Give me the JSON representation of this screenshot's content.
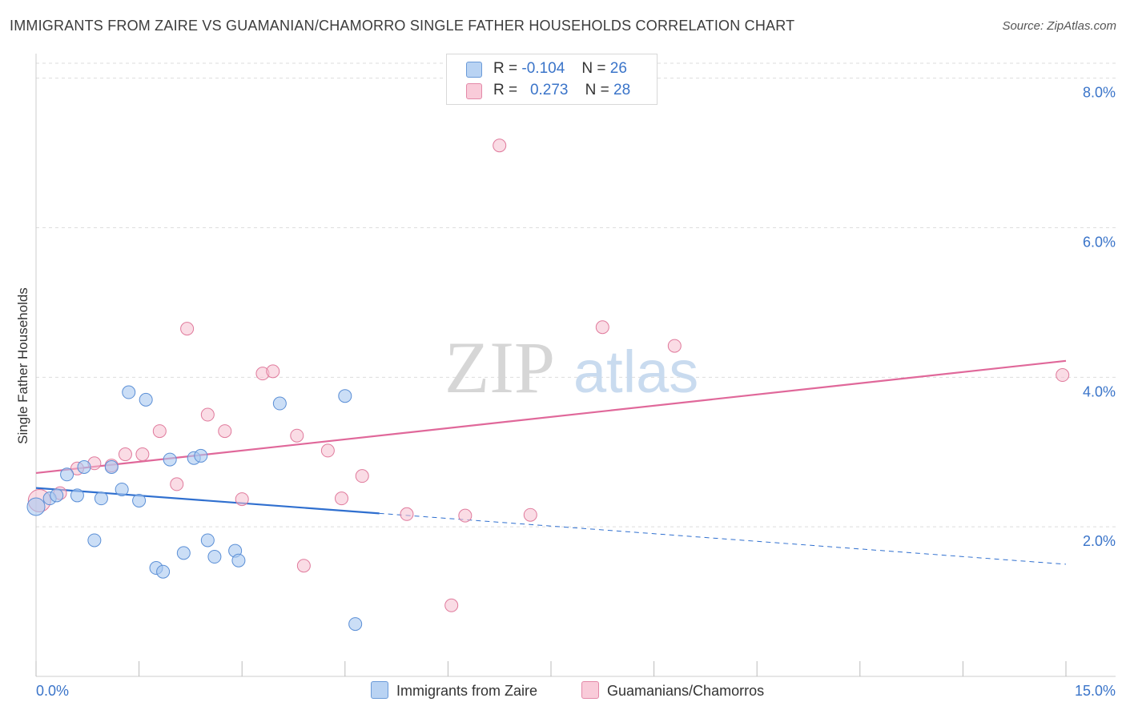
{
  "header": {
    "title": "IMMIGRANTS FROM ZAIRE VS GUAMANIAN/CHAMORRO SINGLE FATHER HOUSEHOLDS CORRELATION CHART",
    "source": "Source: ZipAtlas.com"
  },
  "watermark": {
    "zip": "ZIP",
    "atlas": "atlas"
  },
  "colors": {
    "blue_fill": "#a8c8f0",
    "blue_stroke": "#5b8fd6",
    "blue_line": "#2f6fcf",
    "pink_fill": "#f6bfd0",
    "pink_stroke": "#e07a9c",
    "pink_line": "#e0689a",
    "axis_text": "#3a74c9",
    "grid": "#dddddd"
  },
  "legend_top": {
    "rows": [
      {
        "r_label": "R =",
        "r_value": "-0.104",
        "n_label": "N =",
        "n_value": "26"
      },
      {
        "r_label": "R =",
        "r_value": "0.273",
        "n_label": "N =",
        "n_value": "28"
      }
    ]
  },
  "legend_bottom": {
    "series1": "Immigrants from Zaire",
    "series2": "Guamanians/Chamorros"
  },
  "chart_data": {
    "type": "scatter",
    "title": "IMMIGRANTS FROM ZAIRE VS GUAMANIAN/CHAMORRO SINGLE FATHER HOUSEHOLDS CORRELATION CHART",
    "xlabel": "",
    "ylabel": "Single Father Households",
    "xlim": [
      0,
      15
    ],
    "ylim": [
      0,
      8.2
    ],
    "x_tick_labels": {
      "left": "0.0%",
      "right": "15.0%"
    },
    "y_ticks": [
      2,
      4,
      6,
      8
    ],
    "y_tick_labels": [
      "2.0%",
      "4.0%",
      "6.0%",
      "8.0%"
    ],
    "grid": true,
    "series": [
      {
        "name": "Immigrants from Zaire",
        "color": "blue",
        "points": [
          [
            0.0,
            2.27
          ],
          [
            0.2,
            2.38
          ],
          [
            0.3,
            2.42
          ],
          [
            0.45,
            2.7
          ],
          [
            0.6,
            2.42
          ],
          [
            0.7,
            2.8
          ],
          [
            0.85,
            1.82
          ],
          [
            0.95,
            2.38
          ],
          [
            1.1,
            2.8
          ],
          [
            1.25,
            2.5
          ],
          [
            1.35,
            3.8
          ],
          [
            1.5,
            2.35
          ],
          [
            1.6,
            3.7
          ],
          [
            1.75,
            1.45
          ],
          [
            1.85,
            1.4
          ],
          [
            1.95,
            2.9
          ],
          [
            2.15,
            1.65
          ],
          [
            2.3,
            2.92
          ],
          [
            2.4,
            2.95
          ],
          [
            2.5,
            1.82
          ],
          [
            2.6,
            1.6
          ],
          [
            2.9,
            1.68
          ],
          [
            2.95,
            1.55
          ],
          [
            3.55,
            3.65
          ],
          [
            4.5,
            3.75
          ],
          [
            4.65,
            0.7
          ]
        ],
        "trend": {
          "solid_x": [
            0,
            5.0
          ],
          "dashed_x": [
            5.0,
            15.0
          ],
          "y_at_0": 2.52,
          "y_at_15": 1.5
        }
      },
      {
        "name": "Guamanians/Chamorros",
        "color": "pink",
        "points": [
          [
            0.05,
            2.35
          ],
          [
            0.35,
            2.45
          ],
          [
            0.6,
            2.78
          ],
          [
            0.85,
            2.85
          ],
          [
            1.1,
            2.82
          ],
          [
            1.3,
            2.97
          ],
          [
            1.55,
            2.97
          ],
          [
            1.8,
            3.28
          ],
          [
            2.05,
            2.57
          ],
          [
            2.2,
            4.65
          ],
          [
            2.5,
            3.5
          ],
          [
            2.75,
            3.28
          ],
          [
            3.0,
            2.37
          ],
          [
            3.3,
            4.05
          ],
          [
            3.45,
            4.08
          ],
          [
            3.8,
            3.22
          ],
          [
            3.9,
            1.48
          ],
          [
            4.25,
            3.02
          ],
          [
            4.45,
            2.38
          ],
          [
            4.75,
            2.68
          ],
          [
            5.4,
            2.17
          ],
          [
            6.05,
            0.95
          ],
          [
            6.25,
            2.15
          ],
          [
            6.75,
            7.1
          ],
          [
            7.2,
            2.16
          ],
          [
            8.25,
            4.67
          ],
          [
            9.3,
            4.42
          ],
          [
            14.95,
            4.03
          ]
        ],
        "trend": {
          "x": [
            0,
            15.0
          ],
          "y_at_0": 2.72,
          "y_at_15": 4.22
        }
      }
    ]
  }
}
